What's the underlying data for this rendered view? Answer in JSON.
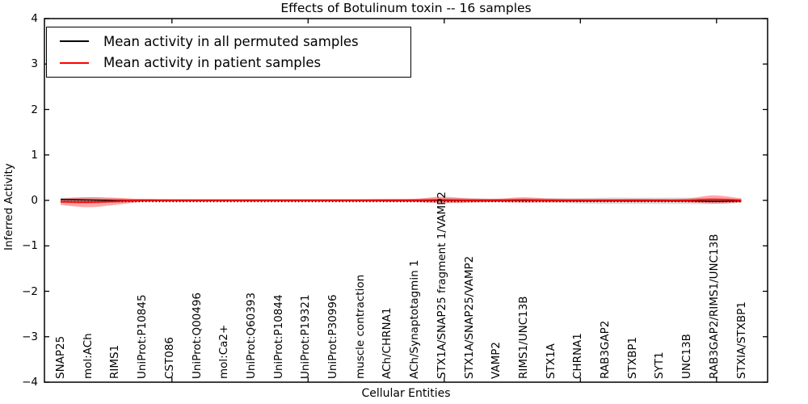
{
  "title": "Effects of Botulinum toxin -- 16 samples",
  "legend": {
    "entries": [
      {
        "label": "Mean activity in all permuted samples",
        "color": "#000000"
      },
      {
        "label": "Mean activity in patient samples",
        "color": "#ff0000"
      }
    ]
  },
  "colors": {
    "background": "#ffffff",
    "axis": "#000000",
    "permuted_line": "#000000",
    "permuted_band": "#999999",
    "patient_line": "#ff0000",
    "patient_band": "#ff1a1a"
  },
  "chart_data": {
    "type": "line",
    "title": "Effects of Botulinum toxin -- 16 samples",
    "xlabel": "Cellular Entities",
    "ylabel": "Inferred Activity",
    "ylim": [
      -4,
      4
    ],
    "yticks": [
      4,
      3,
      2,
      1,
      0,
      -1,
      -2,
      -3,
      -4
    ],
    "ytick_labels": [
      "4",
      "3",
      "2",
      "1",
      "0",
      "−1",
      "−2",
      "−3",
      "−4"
    ],
    "x_major_tick_category_indices": [
      4,
      9,
      14,
      19,
      24
    ],
    "grid": false,
    "legend_position": "upper left",
    "categories": [
      "SNAP25",
      "mol:ACh",
      "RIMS1",
      "UniProt:P10845",
      "CST086",
      "UniProt:Q00496",
      "mol:Ca2+",
      "UniProt:Q60393",
      "UniProt:P10844",
      "UniProt:P19321",
      "UniProt:P30996",
      "muscle contraction",
      "ACh/CHRNA1",
      "ACh/Synaptotagmin 1",
      "STX1A/SNAP25 fragment 1/VAMP2",
      "STX1A/SNAP25/VAMP2",
      "VAMP2",
      "RIMS1/UNC13B",
      "STX1A",
      "CHRNA1",
      "RAB3GAP2",
      "STXBP1",
      "SYT1",
      "UNC13B",
      "RAB3GAP2/RIMS1/UNC13B",
      "STXIA/STXBP1"
    ],
    "series": [
      {
        "name": "Mean activity in all permuted samples",
        "color": "#000000",
        "values": [
          0.02,
          0.01,
          0.0,
          0.0,
          0.0,
          0.0,
          0.0,
          0.0,
          0.0,
          0.0,
          0.0,
          0.0,
          0.0,
          0.0,
          0.0,
          0.0,
          0.0,
          0.0,
          0.0,
          -0.01,
          -0.01,
          -0.01,
          -0.01,
          -0.01,
          -0.02,
          -0.01
        ],
        "std": [
          0.04,
          0.06,
          0.05,
          0.03,
          0.025,
          0.02,
          0.02,
          0.02,
          0.02,
          0.02,
          0.02,
          0.02,
          0.02,
          0.03,
          0.05,
          0.05,
          0.04,
          0.04,
          0.05,
          0.06,
          0.07,
          0.07,
          0.07,
          0.07,
          0.06,
          0.04
        ]
      },
      {
        "name": "Mean activity in patient samples",
        "color": "#ff0000",
        "values": [
          -0.03,
          -0.04,
          -0.02,
          0.0,
          0.0,
          0.0,
          0.0,
          0.0,
          0.0,
          0.0,
          0.0,
          0.0,
          0.0,
          0.0,
          0.01,
          0.0,
          0.0,
          0.01,
          0.0,
          0.0,
          0.0,
          0.0,
          0.0,
          0.0,
          0.02,
          0.0
        ],
        "std": [
          0.07,
          0.11,
          0.08,
          0.03,
          0.025,
          0.025,
          0.025,
          0.025,
          0.025,
          0.025,
          0.025,
          0.025,
          0.03,
          0.035,
          0.07,
          0.045,
          0.035,
          0.06,
          0.04,
          0.03,
          0.03,
          0.035,
          0.03,
          0.04,
          0.09,
          0.045
        ]
      }
    ]
  }
}
